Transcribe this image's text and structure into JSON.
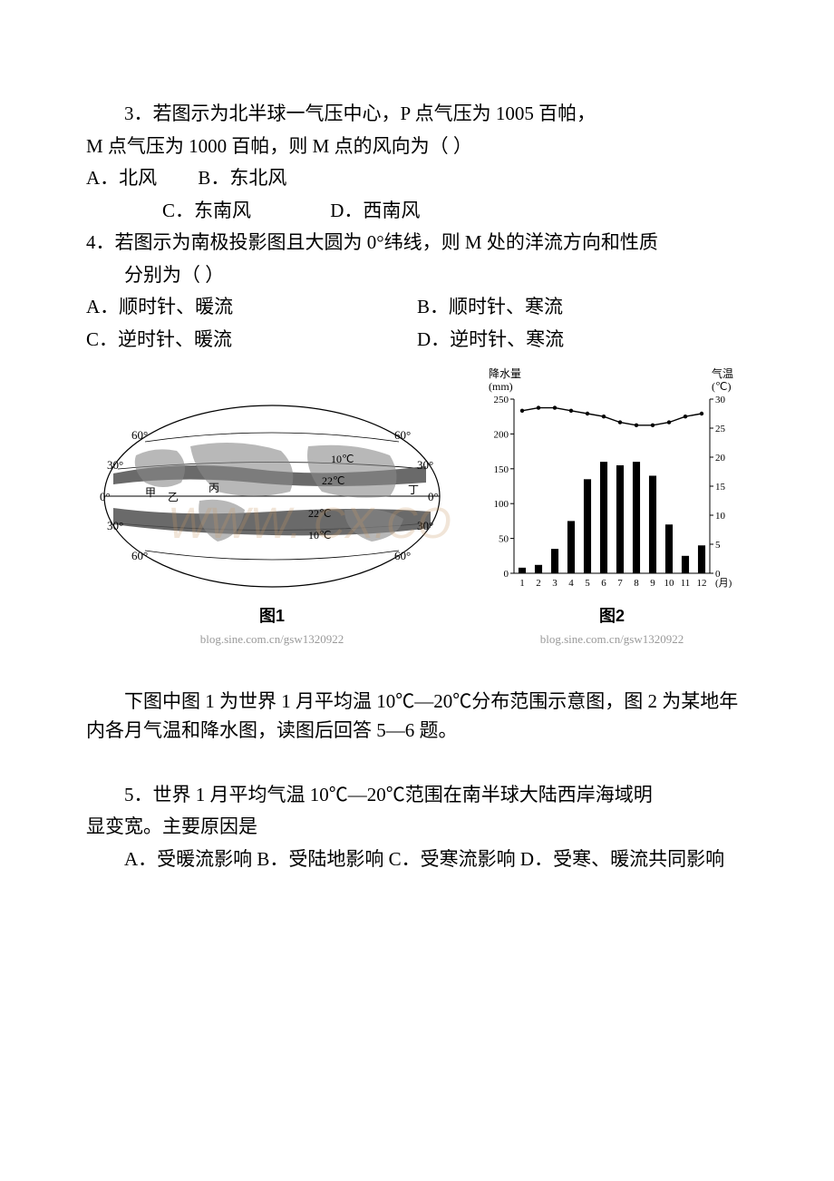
{
  "q3": {
    "stem_line1": "3．若图示为北半球一气压中心，P 点气压为 1005 百帕，",
    "stem_line2": "M 点气压为 1000 百帕，则 M 点的风向为（ ）",
    "choices_line1_a": " A．北风",
    "choices_line1_b": "B．东北风",
    "choices_line2_c": "C．东南风",
    "choices_line2_d": "D．西南风"
  },
  "q4": {
    "stem_line1": "4．若图示为南极投影图且大圆为 0°纬线，则 M 处的洋流方向和性质",
    "stem_line2": "分别为（ ）",
    "choice_a": "A．顺时针、暖流",
    "choice_b": "B．顺时针、寒流",
    "choice_c": "C．逆时针、暖流",
    "choice_d": "D．逆时针、寒流"
  },
  "fig1": {
    "caption": "图1",
    "url": "blog.sine.com.cn/gsw1320922",
    "lat_labels_left": [
      "60°",
      "30°",
      "0°",
      "30°",
      "60°"
    ],
    "lat_labels_right": [
      "60°",
      "30°",
      "0°",
      "30°",
      "60°"
    ],
    "iso_labels": [
      "10℃",
      "22℃",
      "22℃",
      "10℃"
    ],
    "small_labels": [
      "甲",
      "乙",
      "丙",
      "丁"
    ],
    "watermark_text": "WWW.    CX.CO",
    "colors": {
      "land_fill": "#808080",
      "band_fill": "#404040",
      "line": "#000000",
      "bg": "#ffffff"
    }
  },
  "fig2": {
    "caption": "图2",
    "url": "blog.sine.com.cn/gsw1320922",
    "left_axis_label": "降水量\n(mm)",
    "right_axis_label": "气温\n(℃)",
    "left_ticks": [
      0,
      50,
      100,
      150,
      200,
      250
    ],
    "right_ticks": [
      0,
      5,
      10,
      15,
      20,
      25,
      30
    ],
    "x_labels": [
      "1",
      "2",
      "3",
      "4",
      "5",
      "6",
      "7",
      "8",
      "9",
      "10",
      "11",
      "12"
    ],
    "x_unit": "(月)",
    "precip": [
      8,
      12,
      35,
      75,
      135,
      160,
      155,
      160,
      140,
      70,
      25,
      40
    ],
    "temp": [
      28,
      28.5,
      28.5,
      28,
      27.5,
      27,
      26,
      25.5,
      25.5,
      26,
      27,
      27.5
    ],
    "colors": {
      "bar": "#000000",
      "line": "#000000",
      "axis": "#000000",
      "text": "#000000",
      "bg": "#ffffff"
    },
    "font_size_axis": 11,
    "font_size_label": 12
  },
  "intro5_6": {
    "text": "下图中图 1 为世界 1 月平均温 10℃—20℃分布范围示意图，图 2 为某地年内各月气温和降水图，读图后回答 5—6 题。"
  },
  "q5": {
    "stem_line1": "5．世界 1 月平均气温 10℃—20℃范围在南半球大陆西岸海域明",
    "stem_line2": "显变宽。主要原因是",
    "choices": "A．受暖流影响 B．受陆地影响 C．受寒流影响 D．受寒、暖流共同影响"
  }
}
